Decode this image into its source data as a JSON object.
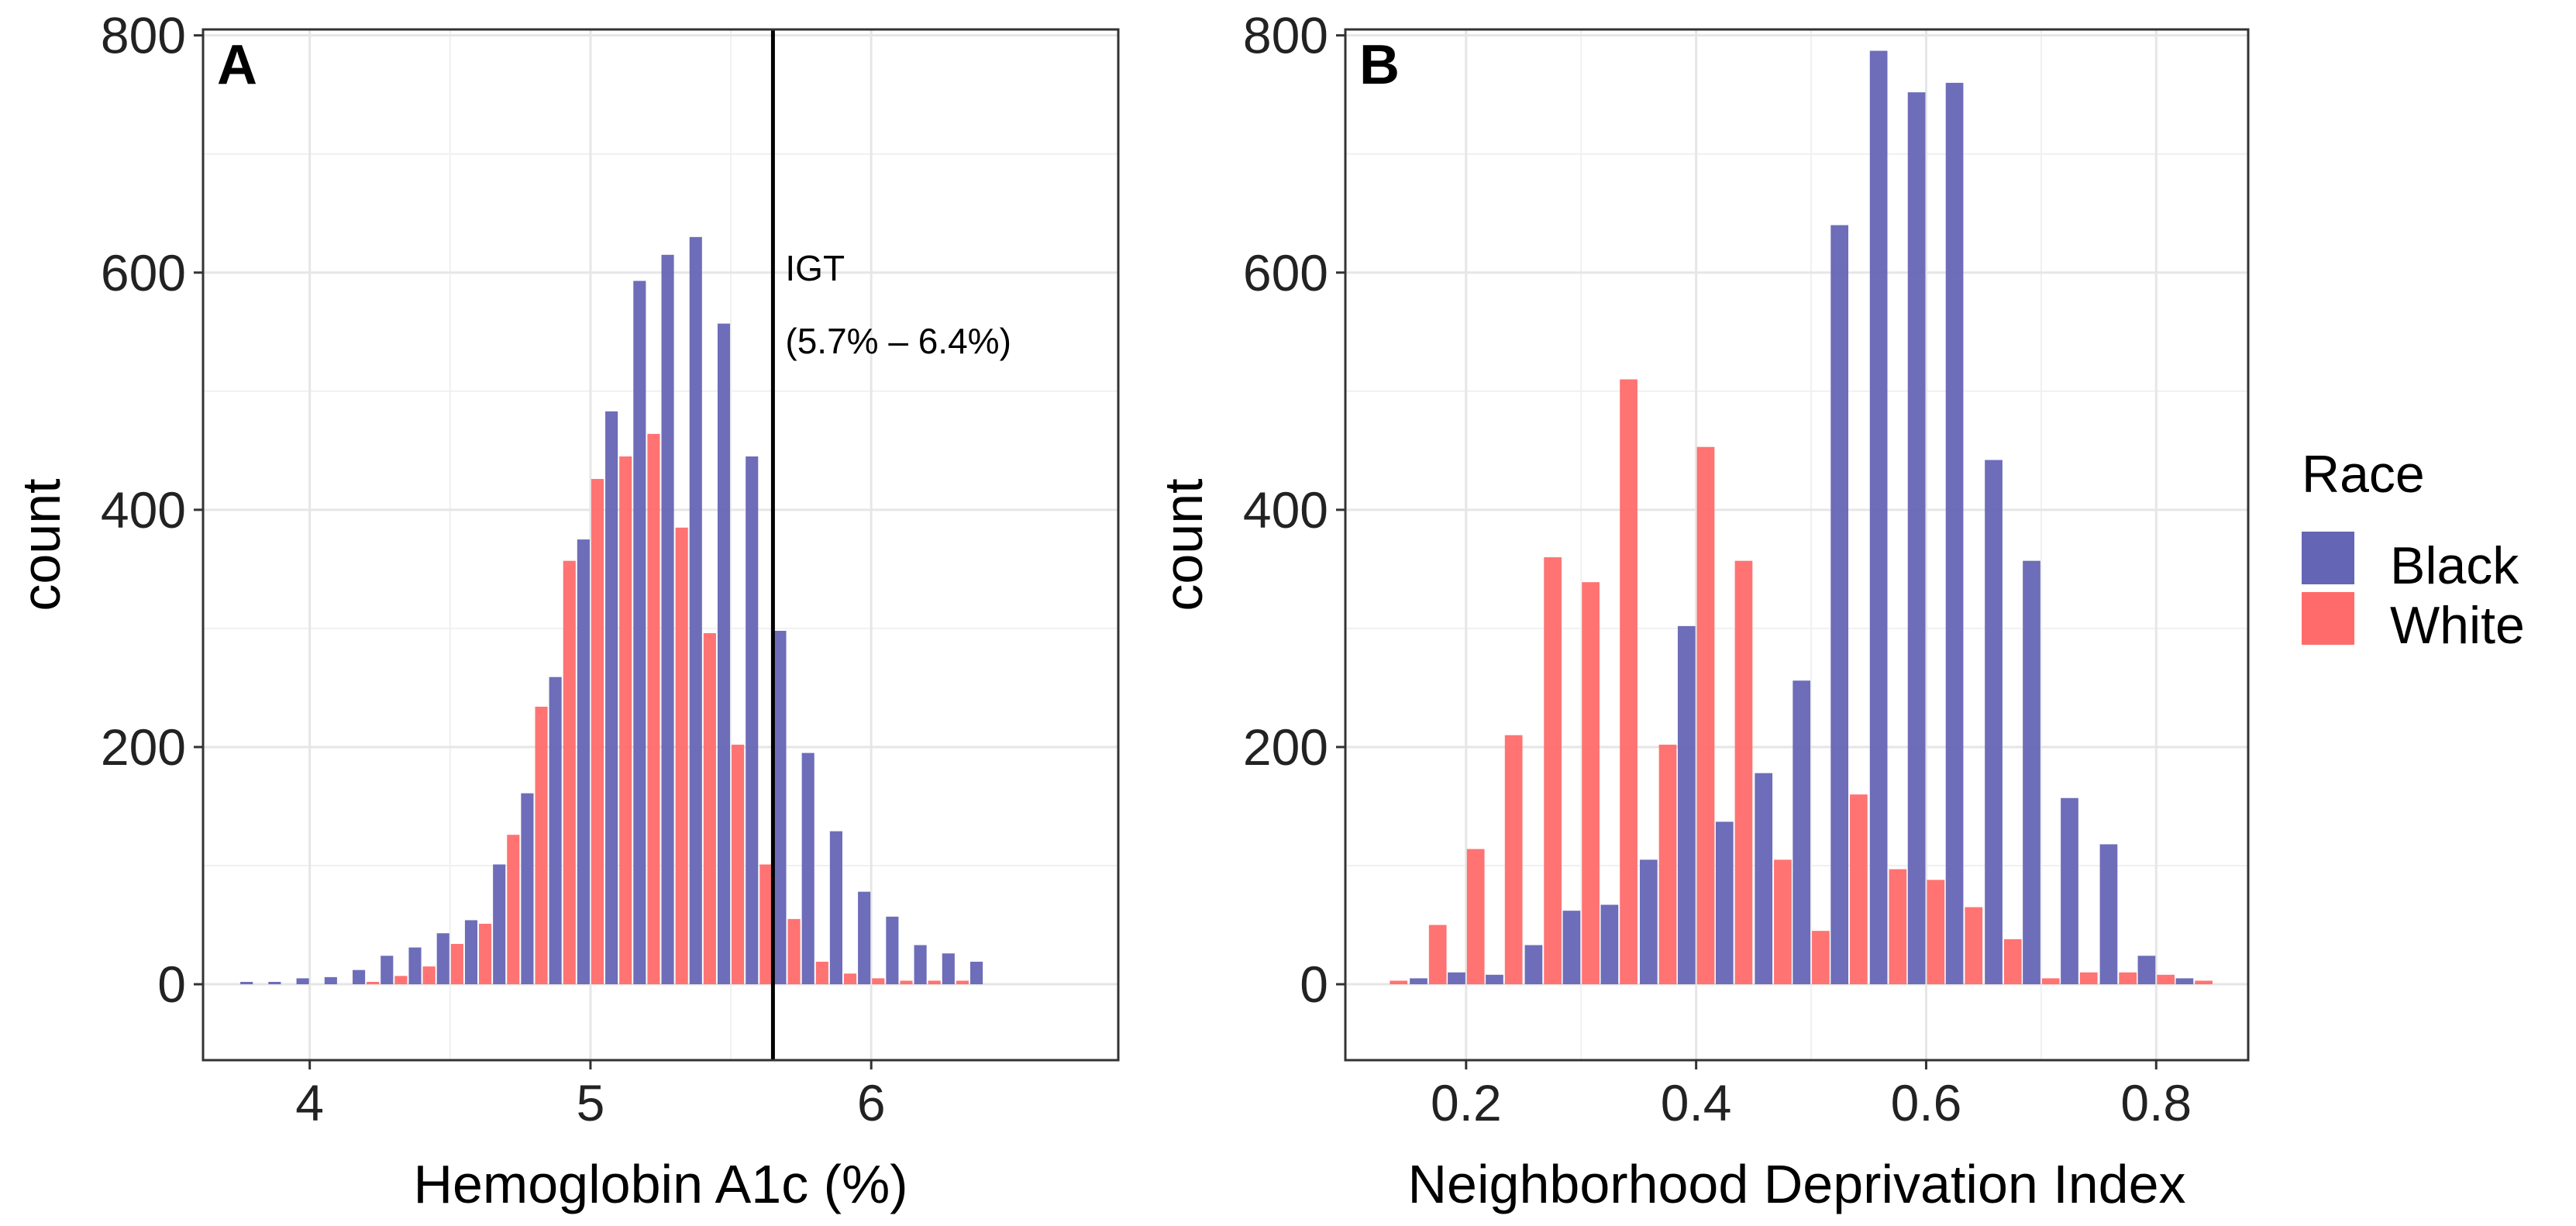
{
  "colors": {
    "black_series": "#6565B5",
    "white_series": "#FF6B6B",
    "grid": "#E6E6E6",
    "frame": "#333333"
  },
  "legend": {
    "title": "Race",
    "entries": [
      {
        "name": "Black",
        "color": "#6565B5"
      },
      {
        "name": "White",
        "color": "#FF6B6B"
      }
    ]
  },
  "chart_data": [
    {
      "panel": "A",
      "type": "bar",
      "title": "",
      "xlabel": "Hemoglobin A1c (%)",
      "ylabel": "count",
      "xlim": [
        3.62,
        6.88
      ],
      "ylim": [
        -64,
        805
      ],
      "xticks": [
        4,
        5,
        6
      ],
      "yticks": [
        0,
        200,
        400,
        600,
        800
      ],
      "bin_width": 0.1,
      "x": [
        3.8,
        3.9,
        4.0,
        4.1,
        4.2,
        4.3,
        4.4,
        4.5,
        4.6,
        4.7,
        4.8,
        4.9,
        5.0,
        5.1,
        5.2,
        5.3,
        5.4,
        5.5,
        5.6,
        5.7,
        5.8,
        5.9,
        6.0,
        6.1,
        6.2,
        6.3,
        6.4
      ],
      "series": [
        {
          "name": "Black",
          "values": [
            2,
            2,
            5,
            6,
            12,
            24,
            31,
            43,
            54,
            101,
            161,
            259,
            375,
            483,
            593,
            615,
            630,
            557,
            445,
            298,
            195,
            129,
            78,
            57,
            33,
            26,
            19
          ]
        },
        {
          "name": "White",
          "values": [
            0,
            0,
            0,
            0,
            2,
            7,
            15,
            34,
            51,
            126,
            234,
            357,
            426,
            445,
            464,
            385,
            296,
            202,
            101,
            55,
            19,
            9,
            5,
            3,
            3,
            3,
            0
          ]
        }
      ],
      "annotations": [
        {
          "type": "vline",
          "x": 5.65,
          "label_lines": [
            "IGT",
            "(5.7% – 6.4%)"
          ]
        }
      ]
    },
    {
      "panel": "B",
      "type": "bar",
      "title": "",
      "xlabel": "Neighborhood Deprivation Index",
      "ylabel": "count",
      "xlim": [
        0.095,
        0.88
      ],
      "ylim": [
        -64,
        805
      ],
      "xticks": [
        0.2,
        0.4,
        0.6,
        0.8
      ],
      "yticks": [
        0,
        200,
        400,
        600,
        800
      ],
      "bin_width": 0.0333,
      "x": [
        0.133,
        0.167,
        0.2,
        0.233,
        0.267,
        0.3,
        0.333,
        0.367,
        0.4,
        0.433,
        0.467,
        0.5,
        0.533,
        0.567,
        0.6,
        0.633,
        0.667,
        0.7,
        0.733,
        0.767,
        0.8,
        0.833
      ],
      "series": [
        {
          "name": "Black",
          "values": [
            0,
            5,
            10,
            8,
            33,
            62,
            67,
            105,
            302,
            137,
            178,
            256,
            640,
            787,
            752,
            760,
            442,
            357,
            157,
            118,
            24,
            5
          ]
        },
        {
          "name": "White",
          "values": [
            3,
            50,
            114,
            210,
            360,
            339,
            510,
            202,
            453,
            357,
            105,
            45,
            160,
            97,
            88,
            65,
            38,
            5,
            10,
            10,
            8,
            3
          ]
        }
      ]
    }
  ]
}
